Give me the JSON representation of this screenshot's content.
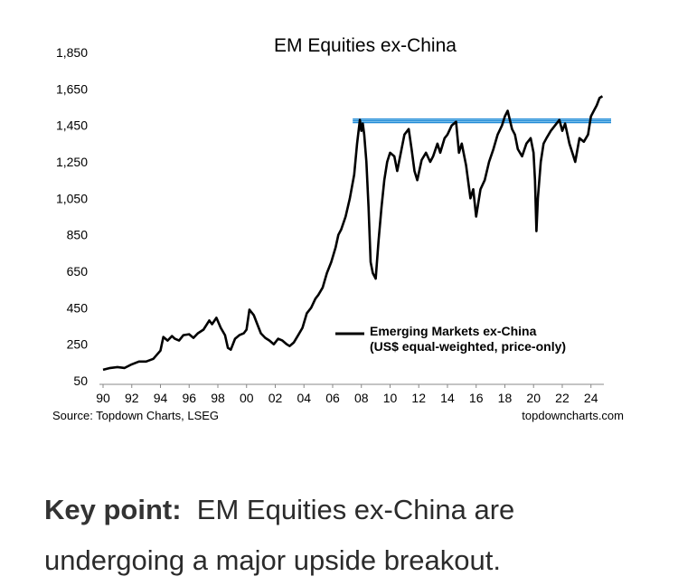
{
  "chart_data": {
    "type": "line",
    "title": "EM Equities ex-China",
    "xlabel": "",
    "ylabel": "",
    "xlim": [
      1990,
      2024.9
    ],
    "ylim": [
      50,
      1850
    ],
    "x_tick_labels": [
      "90",
      "92",
      "94",
      "96",
      "98",
      "00",
      "02",
      "04",
      "06",
      "08",
      "10",
      "12",
      "14",
      "16",
      "18",
      "20",
      "22",
      "24"
    ],
    "x_tick_years": [
      1990,
      1992,
      1994,
      1996,
      1998,
      2000,
      2002,
      2004,
      2006,
      2008,
      2010,
      2012,
      2014,
      2016,
      2018,
      2020,
      2022,
      2024
    ],
    "y_tick_labels": [
      "1,850",
      "1,650",
      "1,450",
      "1,250",
      "1,050",
      "850",
      "650",
      "450",
      "250",
      "50"
    ],
    "y_tick_values": [
      1850,
      1650,
      1450,
      1250,
      1050,
      850,
      650,
      450,
      250,
      50
    ],
    "resistance_band": [
      1465,
      1485
    ],
    "series": [
      {
        "name": "Emerging Markets ex-China",
        "name_line2": "(US$ equal-weighted, price-only)",
        "x": [
          1990.0,
          1990.5,
          1991.0,
          1991.5,
          1992.0,
          1992.5,
          1993.0,
          1993.5,
          1994.0,
          1994.2,
          1994.5,
          1994.8,
          1995.0,
          1995.3,
          1995.6,
          1996.0,
          1996.3,
          1996.6,
          1997.0,
          1997.4,
          1997.6,
          1997.9,
          1998.2,
          1998.5,
          1998.7,
          1998.9,
          1999.2,
          1999.5,
          1999.8,
          2000.0,
          2000.2,
          2000.5,
          2000.8,
          2001.0,
          2001.3,
          2001.6,
          2001.9,
          2002.2,
          2002.5,
          2002.8,
          2003.0,
          2003.3,
          2003.6,
          2003.9,
          2004.2,
          2004.5,
          2004.8,
          2005.0,
          2005.3,
          2005.6,
          2005.9,
          2006.2,
          2006.4,
          2006.6,
          2006.9,
          2007.2,
          2007.5,
          2007.7,
          2007.9,
          2008.0,
          2008.1,
          2008.2,
          2008.35,
          2008.5,
          2008.65,
          2008.8,
          2009.0,
          2009.2,
          2009.4,
          2009.6,
          2009.8,
          2010.0,
          2010.3,
          2010.5,
          2010.8,
          2011.0,
          2011.3,
          2011.5,
          2011.7,
          2011.9,
          2012.2,
          2012.5,
          2012.8,
          2013.0,
          2013.3,
          2013.5,
          2013.8,
          2014.0,
          2014.3,
          2014.6,
          2014.8,
          2015.0,
          2015.3,
          2015.6,
          2015.8,
          2016.0,
          2016.3,
          2016.6,
          2016.9,
          2017.2,
          2017.5,
          2017.8,
          2018.0,
          2018.2,
          2018.5,
          2018.7,
          2018.9,
          2019.2,
          2019.5,
          2019.8,
          2020.0,
          2020.1,
          2020.2,
          2020.3,
          2020.5,
          2020.7,
          2020.9,
          2021.2,
          2021.5,
          2021.8,
          2022.0,
          2022.2,
          2022.5,
          2022.7,
          2022.9,
          2023.2,
          2023.5,
          2023.8,
          2024.0,
          2024.2,
          2024.4,
          2024.6,
          2024.8
        ],
        "values": [
          110,
          120,
          125,
          120,
          140,
          155,
          155,
          170,
          215,
          290,
          270,
          295,
          280,
          270,
          300,
          305,
          285,
          310,
          330,
          380,
          360,
          395,
          340,
          300,
          230,
          220,
          280,
          300,
          310,
          330,
          440,
          410,
          350,
          310,
          285,
          270,
          250,
          280,
          270,
          250,
          240,
          260,
          300,
          340,
          420,
          450,
          500,
          520,
          560,
          640,
          700,
          780,
          850,
          880,
          950,
          1050,
          1180,
          1350,
          1480,
          1420,
          1460,
          1400,
          1250,
          1000,
          700,
          640,
          610,
          820,
          1000,
          1150,
          1250,
          1300,
          1280,
          1200,
          1320,
          1400,
          1430,
          1320,
          1200,
          1150,
          1260,
          1300,
          1250,
          1280,
          1350,
          1300,
          1380,
          1400,
          1450,
          1470,
          1300,
          1350,
          1230,
          1050,
          1100,
          950,
          1100,
          1150,
          1250,
          1320,
          1400,
          1450,
          1500,
          1530,
          1430,
          1400,
          1320,
          1280,
          1350,
          1380,
          1300,
          1150,
          870,
          1050,
          1250,
          1350,
          1380,
          1420,
          1450,
          1480,
          1420,
          1460,
          1350,
          1300,
          1250,
          1380,
          1360,
          1400,
          1500,
          1530,
          1560,
          1600,
          1610
        ]
      }
    ],
    "source": "Source: Topdown Charts, LSEG",
    "credit": "topdowncharts.com"
  },
  "caption": {
    "label": "Key point:",
    "text": "EM Equities ex-China are undergoing a major upside breakout."
  },
  "colors": {
    "line": "#000000",
    "band": "#4fb4e6",
    "band_edge": "#1e88d6",
    "axis": "#888888"
  }
}
